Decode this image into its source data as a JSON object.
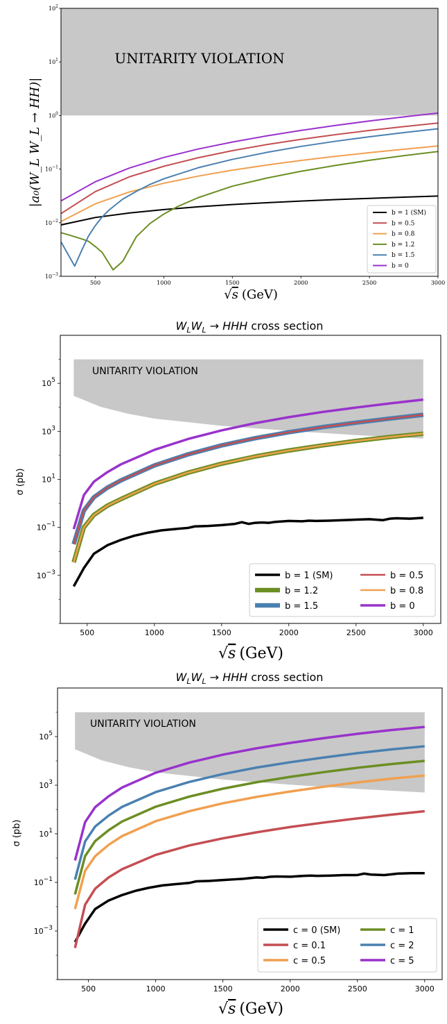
{
  "chart_data": [
    {
      "type": "line",
      "title": "",
      "xlabel_sqrt": "s",
      "xlabel_unit": "(GeV)",
      "ylabel": "|a₀(W_L W_L → HH)|",
      "xlim": [
        250,
        3000
      ],
      "ylim": [
        0.001,
        100
      ],
      "yscale": "log",
      "xticks": [
        500,
        1000,
        1500,
        2000,
        2500,
        3000
      ],
      "yticks": [
        0.001,
        0.01,
        0.1,
        1,
        10,
        100
      ],
      "ytick_labels": [
        {
          "base": "10",
          "exp": "−3"
        },
        {
          "base": "10",
          "exp": "−2"
        },
        {
          "base": "10",
          "exp": "−1"
        },
        {
          "base": "10",
          "exp": "0"
        },
        {
          "base": "10",
          "exp": "1"
        },
        {
          "base": "10",
          "exp": "2"
        }
      ],
      "region": {
        "label": "UNITARITY VIOLATION",
        "y_from": 1,
        "y_to": 100,
        "x_from": 250,
        "x_to": 3000
      },
      "legend_position": "lower-right",
      "series": [
        {
          "name": "b = 1 (SM)",
          "color": "#000000",
          "x": [
            250,
            500,
            750,
            1000,
            1250,
            1500,
            1750,
            2000,
            2250,
            2500,
            2750,
            3000
          ],
          "values": [
            0.0091,
            0.0125,
            0.0152,
            0.0176,
            0.0198,
            0.0218,
            0.0236,
            0.0253,
            0.027,
            0.0285,
            0.03,
            0.0315
          ]
        },
        {
          "name": "b = 0.5",
          "color": "#c44e52",
          "x": [
            250,
            500,
            750,
            1000,
            1250,
            1500,
            1750,
            2000,
            2250,
            2500,
            2750,
            3000
          ],
          "values": [
            0.0148,
            0.038,
            0.072,
            0.113,
            0.163,
            0.221,
            0.287,
            0.359,
            0.439,
            0.527,
            0.621,
            0.723
          ]
        },
        {
          "name": "b = 0.8",
          "color": "#f0a050",
          "x": [
            250,
            500,
            750,
            1000,
            1250,
            1500,
            1750,
            2000,
            2250,
            2500,
            2750,
            3000
          ],
          "values": [
            0.0105,
            0.0225,
            0.0375,
            0.0545,
            0.074,
            0.0955,
            0.119,
            0.145,
            0.173,
            0.203,
            0.235,
            0.27
          ]
        },
        {
          "name": "b = 1.2",
          "color": "#6b8e23",
          "x": [
            250,
            300,
            400,
            450,
            500,
            550,
            630,
            700,
            800,
            900,
            1000,
            1100,
            1250,
            1500,
            1750,
            2000,
            2250,
            2500,
            2750,
            3000
          ],
          "values": [
            0.0065,
            0.006,
            0.005,
            0.0045,
            0.0036,
            0.0028,
            0.00132,
            0.0019,
            0.0055,
            0.0097,
            0.0145,
            0.02,
            0.0293,
            0.048,
            0.068,
            0.091,
            0.117,
            0.146,
            0.178,
            0.213
          ]
        },
        {
          "name": "b = 1.5",
          "color": "#4a80b0",
          "x": [
            250,
            350,
            400,
            450,
            500,
            550,
            600,
            700,
            800,
            900,
            1000,
            1250,
            1500,
            1750,
            2000,
            2250,
            2500,
            2750,
            3000
          ],
          "values": [
            0.0044,
            0.00155,
            0.003,
            0.0056,
            0.0088,
            0.0128,
            0.0172,
            0.0275,
            0.0385,
            0.052,
            0.066,
            0.106,
            0.152,
            0.205,
            0.265,
            0.33,
            0.402,
            0.48,
            0.565
          ]
        },
        {
          "name": "b = 0",
          "color": "#9932cc",
          "x": [
            250,
            500,
            750,
            1000,
            1250,
            1500,
            1750,
            2000,
            2250,
            2500,
            2750,
            3000
          ],
          "values": [
            0.0255,
            0.058,
            0.105,
            0.165,
            0.237,
            0.32,
            0.417,
            0.527,
            0.652,
            0.79,
            0.943,
            1.11
          ]
        }
      ]
    },
    {
      "type": "line",
      "title": "W_L W_L → HHH cross section",
      "title_parts": {
        "w1": "W",
        "s1": "L",
        "w2": "W",
        "s2": "L",
        "arrow": " → ",
        "hhh": "HHH",
        "rest": " cross section"
      },
      "xlabel_sqrt": "s",
      "xlabel_unit": "(GeV)",
      "ylabel": "σ (pb)",
      "xlim": [
        300,
        3130
      ],
      "ylim": [
        1e-05,
        10000000
      ],
      "yscale": "log",
      "xticks": [
        500,
        1000,
        1500,
        2000,
        2500,
        3000
      ],
      "yticks": [
        0.001,
        0.1,
        10,
        1000,
        100000
      ],
      "ytick_labels": [
        {
          "base": "10",
          "exp": "−3"
        },
        {
          "base": "10",
          "exp": "−1"
        },
        {
          "base": "10",
          "exp": "1"
        },
        {
          "base": "10",
          "exp": "3"
        },
        {
          "base": "10",
          "exp": "5"
        }
      ],
      "region": {
        "label": "UNITARITY VIOLATION",
        "x": [
          400,
          3000
        ],
        "upper": 1000000,
        "lower_x": [
          400,
          600,
          800,
          1000,
          1500,
          2000,
          2500,
          3000
        ],
        "lower_y": [
          30000,
          10500,
          5500,
          3400,
          1700,
          1050,
          700,
          500
        ]
      },
      "legend_position": "lower-right",
      "series": [
        {
          "name": "b = 1 (SM)",
          "color": "#000000",
          "width": 3.5,
          "x": [
            400,
            475,
            550,
            650,
            750,
            850,
            950,
            1050,
            1150,
            1250,
            1300,
            1400,
            1500,
            1600,
            1650,
            1700,
            1750,
            1800,
            1850,
            1900,
            2000,
            2100,
            2150,
            2200,
            2300,
            2400,
            2500,
            2600,
            2700,
            2750,
            2800,
            2900,
            3000
          ],
          "values": [
            0.00035,
            0.002,
            0.008,
            0.018,
            0.03,
            0.045,
            0.06,
            0.075,
            0.085,
            0.095,
            0.11,
            0.115,
            0.125,
            0.14,
            0.165,
            0.14,
            0.155,
            0.16,
            0.155,
            0.17,
            0.185,
            0.18,
            0.19,
            0.185,
            0.19,
            0.2,
            0.21,
            0.22,
            0.2,
            0.23,
            0.24,
            0.23,
            0.25
          ]
        },
        {
          "name": "b = 1.2",
          "color": "#6b8e23",
          "width": 6.5,
          "x": [
            400,
            475,
            550,
            650,
            750,
            1000,
            1250,
            1500,
            1750,
            2000,
            2250,
            2500,
            2750,
            3000
          ],
          "values": [
            0.0035,
            0.1,
            0.33,
            0.8,
            1.5,
            6.5,
            19,
            45,
            90,
            160,
            260,
            400,
            580,
            800
          ]
        },
        {
          "name": "b = 1.5",
          "color": "#4a80b0",
          "width": 6.5,
          "x": [
            400,
            475,
            550,
            650,
            750,
            1000,
            1250,
            1500,
            1750,
            2000,
            2250,
            2500,
            2750,
            3000
          ],
          "values": [
            0.02,
            0.5,
            1.8,
            4.5,
            9,
            38,
            110,
            260,
            520,
            920,
            1500,
            2300,
            3400,
            4900
          ]
        },
        {
          "name": "b = 0.5",
          "color": "#c44e52",
          "width": 2.5,
          "x": [
            400,
            475,
            550,
            650,
            750,
            1000,
            1250,
            1500,
            1750,
            2000,
            2250,
            2500,
            2750,
            3000
          ],
          "values": [
            0.02,
            0.5,
            1.8,
            4.5,
            9,
            38,
            110,
            260,
            520,
            920,
            1500,
            2300,
            3400,
            4900
          ]
        },
        {
          "name": "b = 0.8",
          "color": "#f0a050",
          "width": 2.5,
          "x": [
            400,
            475,
            550,
            650,
            750,
            1000,
            1250,
            1500,
            1750,
            2000,
            2250,
            2500,
            2750,
            3000
          ],
          "values": [
            0.0035,
            0.1,
            0.33,
            0.8,
            1.5,
            6.5,
            19,
            45,
            90,
            160,
            260,
            400,
            580,
            800
          ]
        },
        {
          "name": "b = 0",
          "color": "#9932cc",
          "width": 3.5,
          "x": [
            400,
            475,
            550,
            650,
            750,
            1000,
            1250,
            1500,
            1750,
            2000,
            2250,
            2500,
            2750,
            3000
          ],
          "values": [
            0.085,
            2.2,
            8,
            20,
            42,
            170,
            480,
            1100,
            2200,
            3900,
            6400,
            9800,
            14500,
            21000
          ]
        }
      ],
      "legend": [
        {
          "name": "b = 1 (SM)",
          "color": "#000000",
          "width": 3.5,
          "col": 0,
          "row": 0
        },
        {
          "name": "b = 1.2",
          "color": "#6b8e23",
          "width": 6.5,
          "col": 0,
          "row": 1
        },
        {
          "name": "b = 1.5",
          "color": "#4a80b0",
          "width": 6.5,
          "col": 0,
          "row": 2
        },
        {
          "name": "b = 0.5",
          "color": "#c44e52",
          "width": 2.5,
          "col": 1,
          "row": 0
        },
        {
          "name": "b = 0.8",
          "color": "#f0a050",
          "width": 2.5,
          "col": 1,
          "row": 1
        },
        {
          "name": "b = 0",
          "color": "#9932cc",
          "width": 3.5,
          "col": 1,
          "row": 2
        }
      ]
    },
    {
      "type": "line",
      "title": "W_L W_L → HHH cross section",
      "title_parts": {
        "w1": "W",
        "s1": "L",
        "w2": "W",
        "s2": "L",
        "arrow": " → ",
        "hhh": "HHH",
        "rest": " cross section"
      },
      "xlabel_sqrt": "s",
      "xlabel_unit": "(GeV)",
      "ylabel": "σ (pb)",
      "xlim": [
        270,
        3130
      ],
      "ylim": [
        1e-05,
        10000000
      ],
      "yscale": "log",
      "xticks": [
        500,
        1000,
        1500,
        2000,
        2500,
        3000
      ],
      "yticks": [
        0.001,
        0.1,
        10,
        1000,
        100000
      ],
      "ytick_labels": [
        {
          "base": "10",
          "exp": "−3"
        },
        {
          "base": "10",
          "exp": "−1"
        },
        {
          "base": "10",
          "exp": "1"
        },
        {
          "base": "10",
          "exp": "3"
        },
        {
          "base": "10",
          "exp": "5"
        }
      ],
      "region": {
        "label": "UNITARITY VIOLATION",
        "x": [
          400,
          3000
        ],
        "upper": 1000000,
        "lower_x": [
          400,
          600,
          800,
          1000,
          1500,
          2000,
          2500,
          3000
        ],
        "lower_y": [
          30000,
          10500,
          5500,
          3400,
          1700,
          1050,
          700,
          500
        ]
      },
      "legend_position": "lower-right",
      "series": [
        {
          "name": "c = 0 (SM)",
          "color": "#000000",
          "width": 3.5,
          "x": [
            400,
            475,
            550,
            650,
            750,
            850,
            950,
            1050,
            1150,
            1250,
            1300,
            1400,
            1500,
            1600,
            1650,
            1700,
            1750,
            1800,
            1850,
            1900,
            2000,
            2100,
            2150,
            2200,
            2300,
            2400,
            2500,
            2550,
            2600,
            2700,
            2800,
            2900,
            3000
          ],
          "values": [
            0.00035,
            0.002,
            0.008,
            0.018,
            0.03,
            0.045,
            0.06,
            0.075,
            0.085,
            0.095,
            0.11,
            0.115,
            0.125,
            0.135,
            0.14,
            0.15,
            0.16,
            0.155,
            0.17,
            0.175,
            0.17,
            0.185,
            0.19,
            0.185,
            0.19,
            0.2,
            0.2,
            0.23,
            0.21,
            0.2,
            0.23,
            0.24,
            0.24
          ]
        },
        {
          "name": "c = 0.1",
          "color": "#c44e52",
          "width": 3.5,
          "x": [
            400,
            475,
            550,
            650,
            750,
            1000,
            1250,
            1500,
            1750,
            2000,
            2250,
            2500,
            2750,
            3000
          ],
          "values": [
            0.0002,
            0.012,
            0.055,
            0.16,
            0.35,
            1.35,
            3.3,
            6.5,
            11.5,
            19,
            29,
            43,
            61,
            85
          ]
        },
        {
          "name": "c = 0.5",
          "color": "#f0a050",
          "width": 3.5,
          "x": [
            400,
            475,
            550,
            650,
            750,
            1000,
            1250,
            1500,
            1750,
            2000,
            2250,
            2500,
            2750,
            3000
          ],
          "values": [
            0.008,
            0.3,
            1.2,
            3.5,
            8,
            33,
            85,
            180,
            330,
            550,
            860,
            1300,
            1850,
            2500
          ]
        },
        {
          "name": "c = 1",
          "color": "#6b8e23",
          "width": 3.5,
          "x": [
            400,
            475,
            550,
            650,
            750,
            1000,
            1250,
            1500,
            1750,
            2000,
            2250,
            2500,
            2750,
            3000
          ],
          "values": [
            0.032,
            1.2,
            5,
            14,
            32,
            130,
            340,
            720,
            1320,
            2200,
            3450,
            5200,
            7400,
            10000
          ]
        },
        {
          "name": "c = 2",
          "color": "#4a80b0",
          "width": 3.5,
          "x": [
            400,
            475,
            550,
            650,
            750,
            1000,
            1250,
            1500,
            1750,
            2000,
            2250,
            2500,
            2750,
            3000
          ],
          "values": [
            0.13,
            4.8,
            20,
            56,
            128,
            520,
            1360,
            2880,
            5300,
            8800,
            13800,
            20800,
            29600,
            40000
          ]
        },
        {
          "name": "c = 5",
          "color": "#9932cc",
          "width": 3.5,
          "x": [
            400,
            475,
            550,
            650,
            750,
            1000,
            1250,
            1500,
            1750,
            2000,
            2250,
            2500,
            2750,
            3000
          ],
          "values": [
            0.8,
            30,
            125,
            350,
            800,
            3250,
            8500,
            18000,
            33000,
            55000,
            86000,
            130000,
            185000,
            250000
          ]
        }
      ],
      "legend": [
        {
          "name": "c = 0 (SM)",
          "color": "#000000",
          "width": 3.5,
          "col": 0,
          "row": 0
        },
        {
          "name": "c = 0.1",
          "color": "#c44e52",
          "width": 3.5,
          "col": 0,
          "row": 1
        },
        {
          "name": "c = 0.5",
          "color": "#f0a050",
          "width": 3.5,
          "col": 0,
          "row": 2
        },
        {
          "name": "c = 1",
          "color": "#6b8e23",
          "width": 3.5,
          "col": 1,
          "row": 0
        },
        {
          "name": "c = 2",
          "color": "#4a80b0",
          "width": 3.5,
          "col": 1,
          "row": 1
        },
        {
          "name": "c = 5",
          "color": "#9932cc",
          "width": 3.5,
          "col": 1,
          "row": 2
        }
      ]
    }
  ]
}
